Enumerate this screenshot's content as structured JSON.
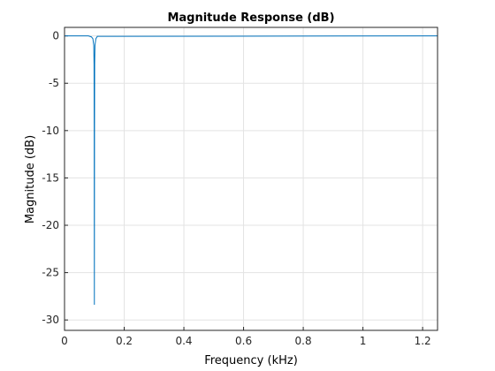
{
  "chart_data": {
    "type": "line",
    "title": "Magnitude Response (dB)",
    "x_label": "Frequency (kHz)",
    "y_label": "Magnitude (dB)",
    "x": [
      0,
      0.08,
      0.09,
      0.095,
      0.098,
      0.099,
      0.0995,
      0.1,
      0.1005,
      0.101,
      0.102,
      0.105,
      0.11,
      1.25
    ],
    "series": [
      {
        "color": "#0072bd",
        "values": [
          0,
          0,
          -0.1,
          -0.3,
          -1,
          -3,
          -10,
          -28.4,
          -10,
          -3,
          -1,
          -0.3,
          -0.05,
          0
        ]
      }
    ],
    "xlim": [
      0,
      1.25
    ],
    "ylim": [
      -31.1,
      0.9
    ],
    "xticks": [
      0,
      0.2,
      0.4,
      0.6,
      0.8,
      1,
      1.2
    ],
    "yticks": [
      -30,
      -25,
      -20,
      -15,
      -10,
      -5,
      0
    ],
    "grid": true
  }
}
